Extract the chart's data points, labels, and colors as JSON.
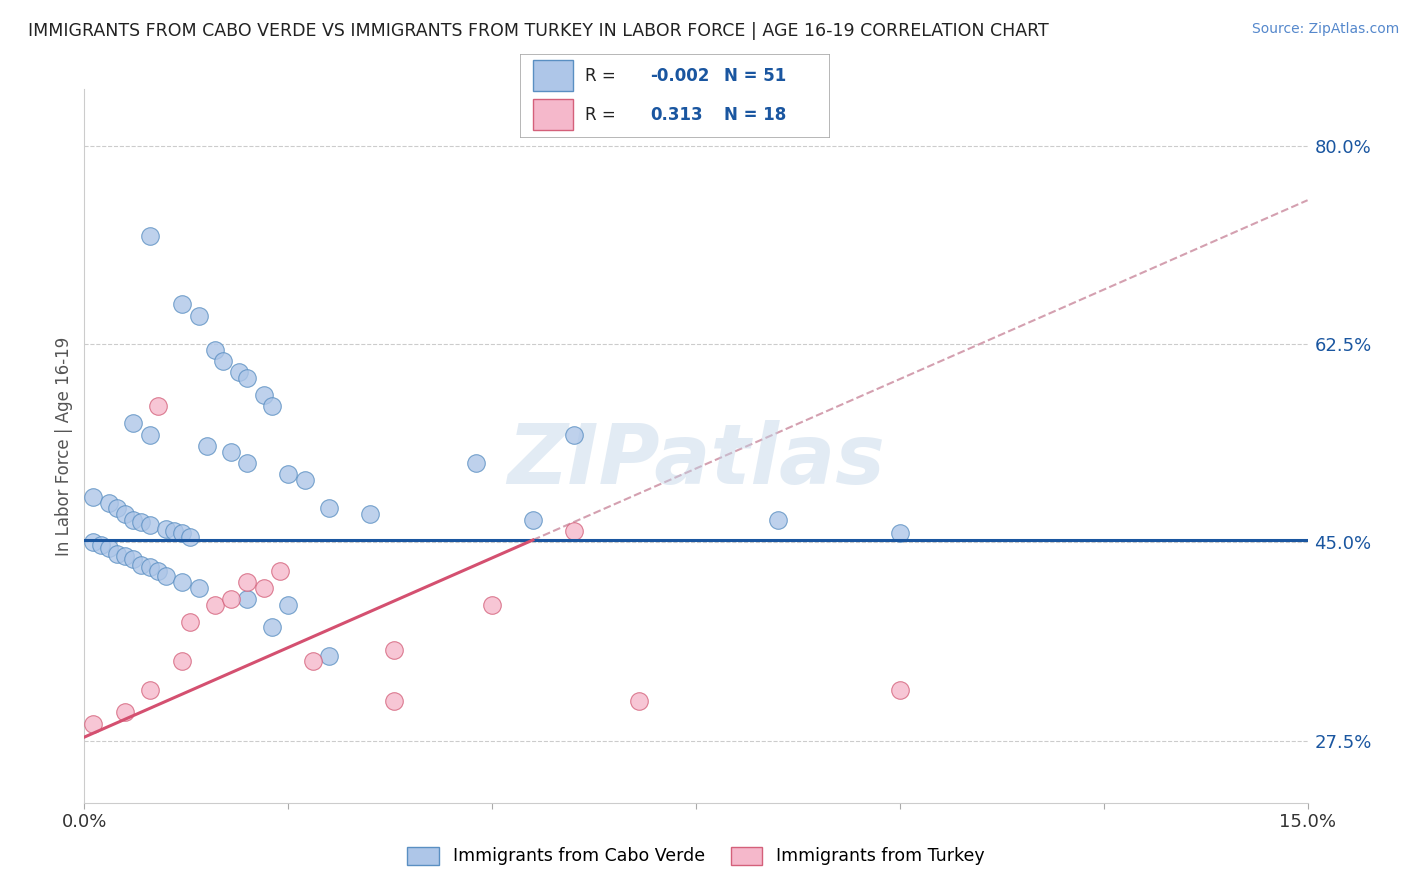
{
  "title": "IMMIGRANTS FROM CABO VERDE VS IMMIGRANTS FROM TURKEY IN LABOR FORCE | AGE 16-19 CORRELATION CHART",
  "source": "Source: ZipAtlas.com",
  "watermark": "ZIPatlas",
  "ylabel": "In Labor Force | Age 16-19",
  "xlim": [
    0.0,
    0.15
  ],
  "ylim": [
    0.22,
    0.85
  ],
  "yticks": [
    0.275,
    0.45,
    0.625,
    0.8
  ],
  "ytick_labels": [
    "27.5%",
    "45.0%",
    "62.5%",
    "80.0%"
  ],
  "cabo_verde_color": "#aec6e8",
  "turkey_color": "#f5b8cb",
  "cabo_verde_edge": "#5a8fc2",
  "turkey_edge": "#d4607a",
  "regression_blue": "#1a56a0",
  "regression_pink": "#d45070",
  "regression_dashed_color": "#d4a0b0",
  "cabo_verde_N": 51,
  "turkey_N": 18,
  "cabo_verde_R": -0.002,
  "turkey_R": 0.313,
  "blue_line_y": 0.452,
  "pink_line_x0": 0.0,
  "pink_line_y0": 0.278,
  "pink_line_x1": 0.055,
  "pink_line_y1": 0.452,
  "dashed_line_x0": 0.055,
  "dashed_line_y0": 0.452,
  "dashed_line_x1": 0.15,
  "dashed_line_y1": 0.752,
  "cabo_verde_x": [
    0.003,
    0.008,
    0.009,
    0.01,
    0.011,
    0.012,
    0.013,
    0.014,
    0.015,
    0.016,
    0.005,
    0.007,
    0.008,
    0.009,
    0.01,
    0.011,
    0.012,
    0.013,
    0.014,
    0.016,
    0.018,
    0.019,
    0.02,
    0.021,
    0.022,
    0.023,
    0.024,
    0.025,
    0.001,
    0.002,
    0.003,
    0.004,
    0.005,
    0.006,
    0.007,
    0.008,
    0.004,
    0.005,
    0.006,
    0.007,
    0.009,
    0.01,
    0.011,
    0.012,
    0.03,
    0.035,
    0.04,
    0.05,
    0.06,
    0.085,
    0.1
  ],
  "cabo_verde_y": [
    0.72,
    0.66,
    0.65,
    0.63,
    0.62,
    0.61,
    0.59,
    0.58,
    0.57,
    0.56,
    0.55,
    0.54,
    0.53,
    0.52,
    0.51,
    0.5,
    0.49,
    0.49,
    0.5,
    0.48,
    0.47,
    0.48,
    0.46,
    0.47,
    0.46,
    0.47,
    0.46,
    0.47,
    0.46,
    0.46,
    0.45,
    0.44,
    0.44,
    0.43,
    0.43,
    0.42,
    0.41,
    0.4,
    0.39,
    0.38,
    0.37,
    0.36,
    0.35,
    0.34,
    0.47,
    0.47,
    0.46,
    0.52,
    0.54,
    0.47,
    0.46
  ],
  "turkey_x": [
    0.001,
    0.005,
    0.008,
    0.01,
    0.012,
    0.014,
    0.016,
    0.018,
    0.02,
    0.022,
    0.025,
    0.03,
    0.04,
    0.05,
    0.055,
    0.065,
    0.075,
    0.1
  ],
  "turkey_y": [
    0.28,
    0.295,
    0.31,
    0.32,
    0.335,
    0.345,
    0.35,
    0.36,
    0.37,
    0.38,
    0.39,
    0.395,
    0.415,
    0.38,
    0.44,
    0.31,
    0.285,
    0.355
  ]
}
